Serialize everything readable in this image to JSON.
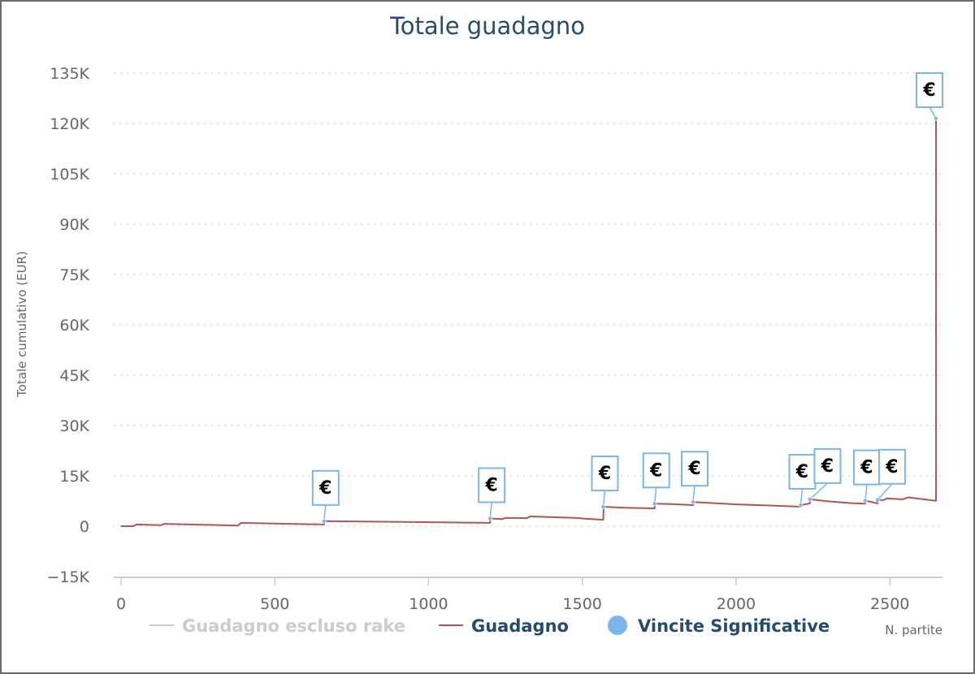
{
  "chart_data": {
    "type": "line",
    "title": "Totale guadagno",
    "xlabel": "N. partite",
    "ylabel": "Totale cumulativo (EUR)",
    "xlim": [
      0,
      2650
    ],
    "ylim": [
      -15000,
      135000
    ],
    "x_ticks": [
      0,
      500,
      1000,
      1500,
      2000,
      2500
    ],
    "x_tick_labels": [
      "0",
      "500",
      "1000",
      "1500",
      "2000",
      "2500"
    ],
    "y_ticks": [
      -15000,
      0,
      15000,
      30000,
      45000,
      60000,
      75000,
      90000,
      105000,
      120000,
      135000
    ],
    "y_tick_labels": [
      "−15K",
      "0",
      "15K",
      "30K",
      "45K",
      "60K",
      "75K",
      "90K",
      "105K",
      "120K",
      "135K"
    ],
    "grid": "horizontal-dotted",
    "legend_position": "bottom",
    "colors": {
      "title": "#274b6d",
      "guadagno": "#b05555",
      "rake_hidden": "#cccccc",
      "vincite": "#7cb5ec",
      "axis": "#c0d0e0",
      "grid": "#d8d8d8",
      "tick_text": "#666666",
      "legend_text": "#274b6d"
    },
    "series": [
      {
        "name": "Guadagno escluso rake",
        "visible": false,
        "x": [],
        "y": []
      },
      {
        "name": "Guadagno",
        "visible": true,
        "x": [
          0,
          40,
          50,
          130,
          140,
          380,
          390,
          660,
          661,
          1200,
          1201,
          1240,
          1250,
          1320,
          1330,
          1480,
          1500,
          1568,
          1569,
          1640,
          1735,
          1736,
          1790,
          1860,
          1861,
          2000,
          2100,
          2210,
          2211,
          2240,
          2241,
          2300,
          2370,
          2420,
          2421,
          2460,
          2461,
          2480,
          2490,
          2540,
          2560,
          2648,
          2650,
          2650
        ],
        "y": [
          0,
          0,
          500,
          300,
          700,
          200,
          1000,
          500,
          1500,
          1000,
          2300,
          2100,
          2500,
          2400,
          2900,
          2500,
          2300,
          1900,
          5800,
          5500,
          5300,
          6700,
          6600,
          6300,
          7200,
          6500,
          6200,
          5800,
          6300,
          6800,
          8000,
          7400,
          6900,
          6700,
          7600,
          6800,
          7800,
          7800,
          8300,
          8000,
          8600,
          7600,
          7600,
          121500
        ]
      },
      {
        "name": "Vincite Significative",
        "type": "flags",
        "points": [
          {
            "x": 660,
            "y": 1500,
            "label": "€"
          },
          {
            "x": 1200,
            "y": 2300,
            "label": "€"
          },
          {
            "x": 1568,
            "y": 5800,
            "label": "€"
          },
          {
            "x": 1735,
            "y": 6700,
            "label": "€"
          },
          {
            "x": 1860,
            "y": 7200,
            "label": "€"
          },
          {
            "x": 2210,
            "y": 6300,
            "label": "€"
          },
          {
            "x": 2240,
            "y": 8000,
            "label": "€"
          },
          {
            "x": 2420,
            "y": 7600,
            "label": "€"
          },
          {
            "x": 2460,
            "y": 7800,
            "label": "€"
          },
          {
            "x": 2650,
            "y": 121500,
            "label": "€"
          }
        ]
      }
    ]
  }
}
